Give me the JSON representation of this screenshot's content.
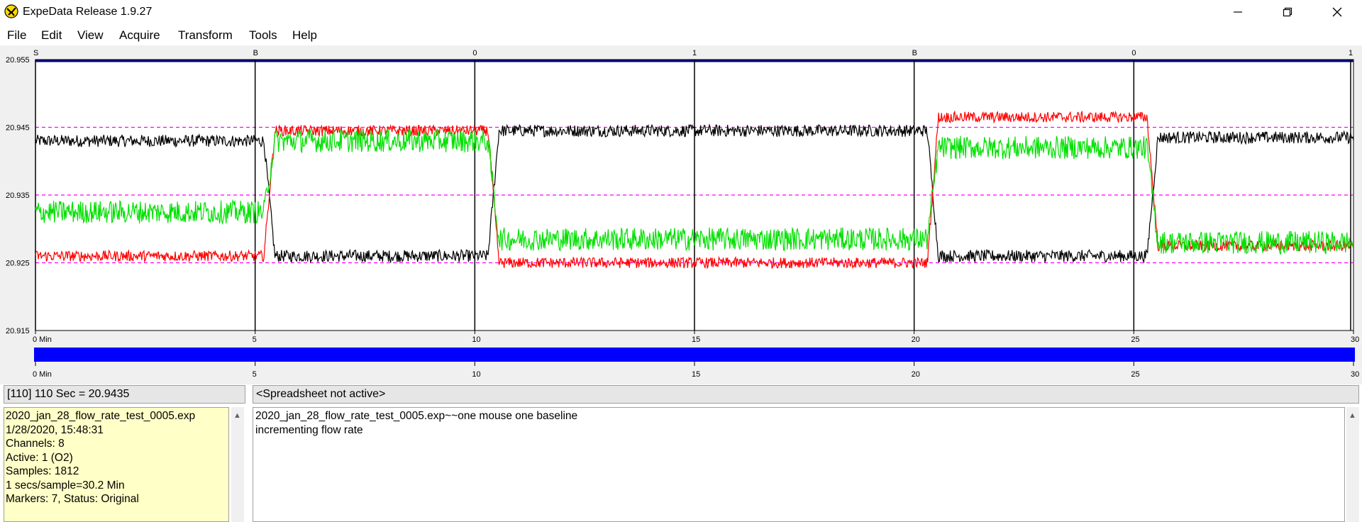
{
  "window": {
    "title": "ExpeData Release 1.9.27",
    "icons": [
      "app-icon",
      "minimize-icon",
      "maximize-icon",
      "close-icon"
    ]
  },
  "menu": [
    "File",
    "Edit",
    "View",
    "Acquire",
    "Transform",
    "Tools",
    "Help"
  ],
  "chart_data": {
    "type": "line",
    "y_tick_labels": [
      "20.955",
      "20.945",
      "20.935",
      "20.925",
      "20.915"
    ],
    "ylim": [
      20.915,
      20.955
    ],
    "reference_lines": [
      20.945,
      20.935,
      20.925
    ],
    "xlim": [
      0,
      30
    ],
    "x_unit": "Min",
    "x_tick_labels": [
      "0 Min",
      "5",
      "10",
      "15",
      "20",
      "25",
      "30"
    ],
    "timeline_tick_labels": [
      "0 Min",
      "5",
      "10",
      "15",
      "20",
      "25",
      "30"
    ],
    "markers": [
      {
        "x": 0,
        "label": "S"
      },
      {
        "x": 5,
        "label": "B"
      },
      {
        "x": 10,
        "label": "0"
      },
      {
        "x": 15,
        "label": "1"
      },
      {
        "x": 20,
        "label": "B"
      },
      {
        "x": 25,
        "label": "0"
      },
      {
        "x": 30,
        "label": "1"
      }
    ],
    "colors": {
      "black": "#000000",
      "red": "#ff0000",
      "green": "#00e000",
      "ref": "#ff00ff",
      "top": "#000080",
      "timeline": "#0000ff"
    },
    "series": [
      {
        "color": "#000000",
        "segments": [
          [
            0,
            5.2,
            20.943
          ],
          [
            5.2,
            10.3,
            20.926
          ],
          [
            10.3,
            20.3,
            20.9445
          ],
          [
            20.3,
            25.3,
            20.926
          ],
          [
            25.3,
            30,
            20.9435
          ]
        ],
        "noise": 0.0009
      },
      {
        "color": "#ff0000",
        "segments": [
          [
            0,
            5.2,
            20.926
          ],
          [
            5.2,
            10.3,
            20.9445
          ],
          [
            10.3,
            20.3,
            20.925
          ],
          [
            20.3,
            25.3,
            20.9465
          ],
          [
            25.3,
            30,
            20.9275
          ]
        ],
        "noise": 0.0008
      },
      {
        "color": "#00e000",
        "segments": [
          [
            0,
            5.2,
            20.9325
          ],
          [
            5.2,
            10.3,
            20.943
          ],
          [
            10.3,
            20.3,
            20.9285
          ],
          [
            20.3,
            25.3,
            20.942
          ],
          [
            25.3,
            30,
            20.928
          ]
        ],
        "noise": 0.0017
      }
    ]
  },
  "status": {
    "cursor_readout": "[110] 110 Sec = 20.9435",
    "spreadsheet": "<Spreadsheet not active>"
  },
  "info": [
    "2020_jan_28_flow_rate_test_0005.exp",
    "1/28/2020, 15:48:31",
    "Channels: 8",
    "Active: 1 (O2)",
    "Samples: 1812",
    "1 secs/sample=30.2 Min",
    "Markers: 7, Status: Original"
  ],
  "comment": [
    "2020_jan_28_flow_rate_test_0005.exp~~one mouse one baseline",
    "incrementing flow rate"
  ]
}
